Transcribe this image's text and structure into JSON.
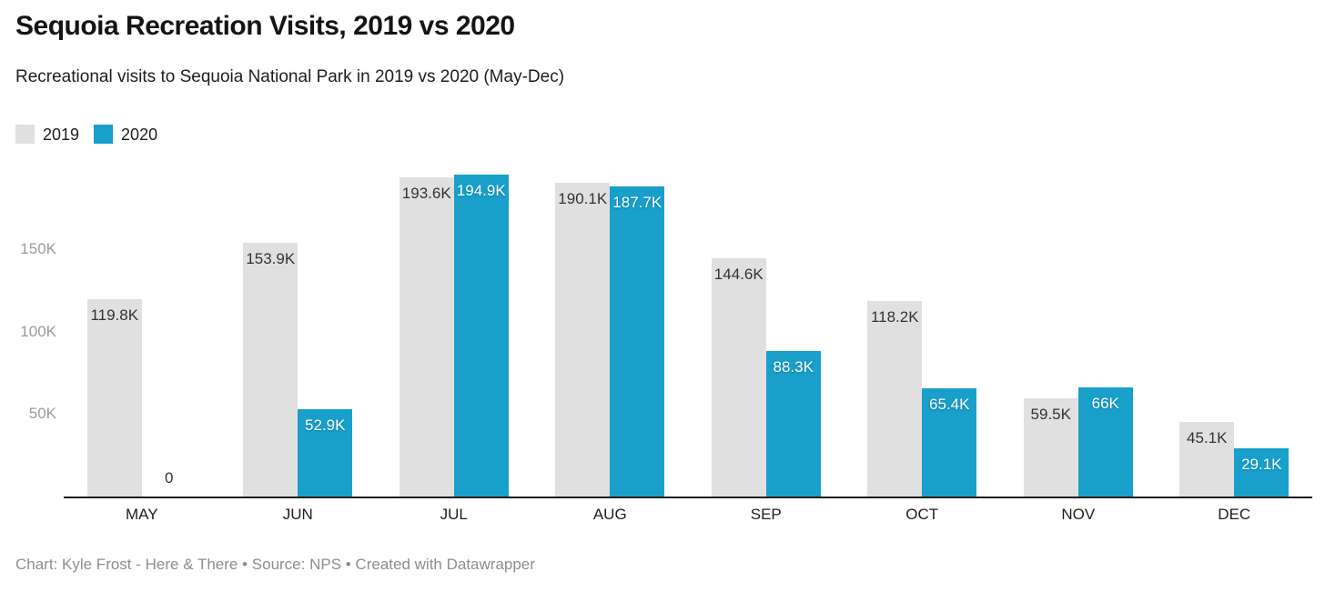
{
  "header": {
    "title": "Sequoia Recreation Visits, 2019 vs 2020",
    "subtitle": "Recreational visits to Sequoia National Park in 2019 vs 2020 (May-Dec)"
  },
  "legend": {
    "items": [
      {
        "label": "2019",
        "color": "#e1e0e0"
      },
      {
        "label": "2020",
        "color": "#18a0cb"
      }
    ]
  },
  "chart_data": {
    "type": "bar",
    "title": "Sequoia Recreation Visits, 2019 vs 2020",
    "subtitle": "Recreational visits to Sequoia National Park in 2019 vs 2020 (May-Dec)",
    "categories": [
      "MAY",
      "JUN",
      "JUL",
      "AUG",
      "SEP",
      "OCT",
      "NOV",
      "DEC"
    ],
    "series": [
      {
        "name": "2019",
        "color": "#e1e0e0",
        "label_color": "#333333",
        "values": [
          119800,
          153900,
          193600,
          190100,
          144600,
          118200,
          59500,
          45100
        ],
        "labels": [
          "119.8K",
          "153.9K",
          "193.6K",
          "190.1K",
          "144.6K",
          "118.2K",
          "59.5K",
          "45.1K"
        ]
      },
      {
        "name": "2020",
        "color": "#18a0cb",
        "label_color": "#ffffff",
        "values": [
          0,
          52900,
          194900,
          187700,
          88300,
          65400,
          66000,
          29100
        ],
        "labels": [
          "0",
          "52.9K",
          "194.9K",
          "187.7K",
          "88.3K",
          "65.4K",
          "66K",
          "29.1K"
        ]
      }
    ],
    "xlabel": "",
    "ylabel": "",
    "ylim": [
      0,
      200000
    ],
    "y_ticks": [
      {
        "value": 50000,
        "label": "50K"
      },
      {
        "value": 100000,
        "label": "100K"
      },
      {
        "value": 150000,
        "label": "150K"
      }
    ],
    "grid": false,
    "legend_position": "top-left"
  },
  "footer": {
    "credit": "Chart: Kyle Frost - Here & There • Source: NPS • Created with Datawrapper"
  }
}
